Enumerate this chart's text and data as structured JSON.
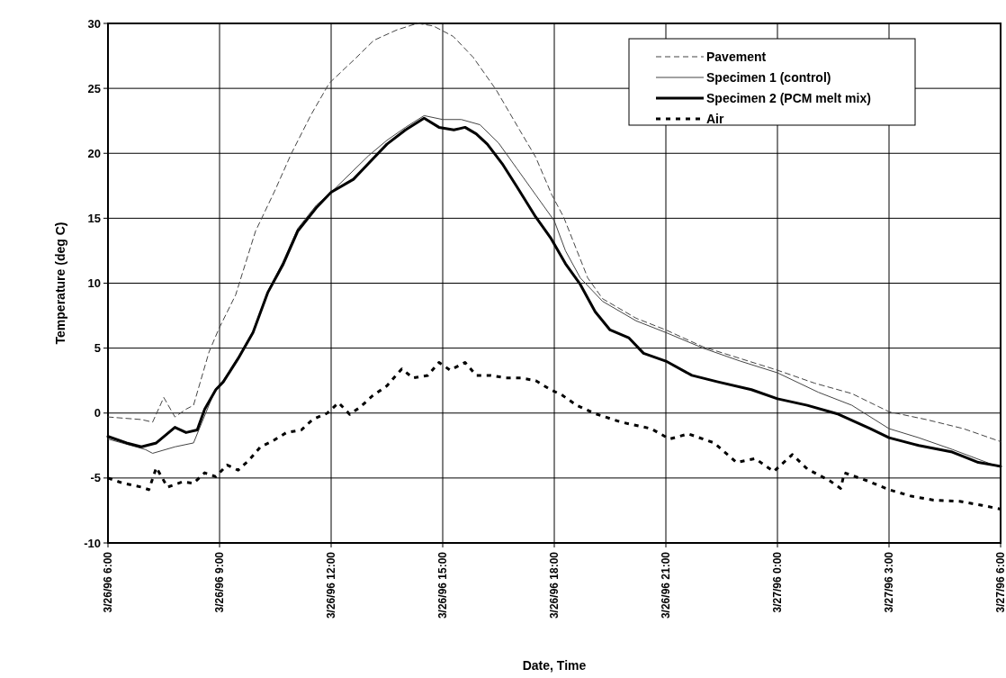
{
  "chart_data": {
    "type": "line",
    "xlabel": "Date, Time",
    "ylabel": "Temperature (deg C)",
    "xlim": [
      "1996-03-26T06:00",
      "1996-03-27T06:00"
    ],
    "xticks": [
      {
        "value": "1996-03-26T06:00",
        "label": "3/26/96 6:00"
      },
      {
        "value": "1996-03-26T09:00",
        "label": "3/26/96 9:00"
      },
      {
        "value": "1996-03-26T12:00",
        "label": "3/26/96 12:00"
      },
      {
        "value": "1996-03-26T15:00",
        "label": "3/26/96 15:00"
      },
      {
        "value": "1996-03-26T18:00",
        "label": "3/26/96 18:00"
      },
      {
        "value": "1996-03-26T21:00",
        "label": "3/26/96 21:00"
      },
      {
        "value": "1996-03-27T00:00",
        "label": "3/27/96 0:00"
      },
      {
        "value": "1996-03-27T03:00",
        "label": "3/27/96 3:00"
      },
      {
        "value": "1996-03-27T06:00",
        "label": "3/27/96 6:00"
      }
    ],
    "ylim": [
      -10,
      30
    ],
    "yticks": [
      -10,
      -5,
      0,
      5,
      10,
      15,
      20,
      25,
      30
    ],
    "grid": true,
    "legend": "top right",
    "marker": "none",
    "series": [
      {
        "name": "Pavement",
        "color": "#444444",
        "line_style": "dashed",
        "x": [
          "1996-03-26T06:00",
          "1996-03-26T06:54",
          "1996-03-26T07:12",
          "1996-03-26T07:30",
          "1996-03-26T07:48",
          "1996-03-26T08:06",
          "1996-03-26T08:18",
          "1996-03-26T08:43",
          "1996-03-26T08:59",
          "1996-03-26T09:26",
          "1996-03-26T09:58",
          "1996-03-26T10:29",
          "1996-03-26T10:56",
          "1996-03-26T11:28",
          "1996-03-26T11:57",
          "1996-03-26T12:37",
          "1996-03-26T13:09",
          "1996-03-26T13:46",
          "1996-03-26T14:19",
          "1996-03-26T14:45",
          "1996-03-26T15:17",
          "1996-03-26T15:49",
          "1996-03-26T16:26",
          "1996-03-26T17:04",
          "1996-03-26T17:30",
          "1996-03-26T17:56",
          "1996-03-26T18:15",
          "1996-03-26T18:54",
          "1996-03-26T19:18",
          "1996-03-26T20:12",
          "1996-03-26T21:00",
          "1996-03-26T22:00",
          "1996-03-26T23:00",
          "1996-03-27T00:00",
          "1996-03-27T01:00",
          "1996-03-27T02:00",
          "1996-03-27T03:00",
          "1996-03-27T04:00",
          "1996-03-27T05:00",
          "1996-03-27T06:00"
        ],
        "values": [
          -0.3,
          -0.5,
          -0.7,
          1.2,
          -0.3,
          0.3,
          0.6,
          4.7,
          6.5,
          9.1,
          14,
          17.1,
          20,
          23,
          25.4,
          27.2,
          28.7,
          29.5,
          30,
          29.8,
          29,
          27.4,
          24.9,
          21.8,
          19.7,
          16.8,
          15.1,
          10.4,
          8.8,
          7.3,
          6.4,
          5.1,
          4.2,
          3.3,
          2.3,
          1.5,
          0.1,
          -0.5,
          -1.2,
          -2.2
        ]
      },
      {
        "name": "Specimen 1 (control)",
        "color": "#444444",
        "line_style": "solid",
        "x": [
          "1996-03-26T06:00",
          "1996-03-26T07:00",
          "1996-03-26T07:12",
          "1996-03-26T07:48",
          "1996-03-26T08:18",
          "1996-03-26T08:54",
          "1996-03-26T09:06",
          "1996-03-26T09:30",
          "1996-03-26T09:54",
          "1996-03-26T10:18",
          "1996-03-26T10:42",
          "1996-03-26T11:06",
          "1996-03-26T11:36",
          "1996-03-26T12:00",
          "1996-03-26T13:00",
          "1996-03-26T13:30",
          "1996-03-26T14:00",
          "1996-03-26T14:30",
          "1996-03-26T15:00",
          "1996-03-26T15:30",
          "1996-03-26T16:00",
          "1996-03-26T16:30",
          "1996-03-26T17:00",
          "1996-03-26T17:30",
          "1996-03-26T18:00",
          "1996-03-26T18:18",
          "1996-03-26T18:42",
          "1996-03-26T19:18",
          "1996-03-26T20:12",
          "1996-03-26T21:00",
          "1996-03-26T22:00",
          "1996-03-26T23:00",
          "1996-03-27T00:00",
          "1996-03-27T01:06",
          "1996-03-27T02:00",
          "1996-03-27T03:00",
          "1996-03-27T03:48",
          "1996-03-27T04:42",
          "1996-03-27T06:00"
        ],
        "values": [
          -2,
          -2.8,
          -3.1,
          -2.6,
          -2.3,
          1.9,
          2.5,
          4.3,
          6.3,
          9.4,
          11.6,
          14.2,
          16,
          17,
          19.8,
          21,
          22,
          22.9,
          22.6,
          22.6,
          22.2,
          20.8,
          18.8,
          16.8,
          14.8,
          12.5,
          10.4,
          8.6,
          7.1,
          6.2,
          5,
          4,
          3.1,
          1.6,
          0.6,
          -1.2,
          -1.9,
          -2.8,
          -4.2
        ]
      },
      {
        "name": "Specimen 2 (PCM melt mix)",
        "color": "#000000",
        "line_style": "solid",
        "x": [
          "1996-03-26T06:00",
          "1996-03-26T06:30",
          "1996-03-26T06:54",
          "1996-03-26T07:18",
          "1996-03-26T07:48",
          "1996-03-26T08:06",
          "1996-03-26T08:24",
          "1996-03-26T08:36",
          "1996-03-26T08:54",
          "1996-03-26T09:06",
          "1996-03-26T09:30",
          "1996-03-26T09:54",
          "1996-03-26T10:18",
          "1996-03-26T10:42",
          "1996-03-26T11:06",
          "1996-03-26T11:36",
          "1996-03-26T12:00",
          "1996-03-26T12:36",
          "1996-03-26T13:00",
          "1996-03-26T13:30",
          "1996-03-26T14:00",
          "1996-03-26T14:30",
          "1996-03-26T14:54",
          "1996-03-26T15:18",
          "1996-03-26T15:36",
          "1996-03-26T15:54",
          "1996-03-26T16:12",
          "1996-03-26T16:36",
          "1996-03-26T17:00",
          "1996-03-26T17:30",
          "1996-03-26T17:54",
          "1996-03-26T18:18",
          "1996-03-26T18:42",
          "1996-03-26T19:06",
          "1996-03-26T19:30",
          "1996-03-26T20:00",
          "1996-03-26T20:24",
          "1996-03-26T21:00",
          "1996-03-26T21:42",
          "1996-03-26T22:24",
          "1996-03-26T23:18",
          "1996-03-27T00:00",
          "1996-03-27T00:48",
          "1996-03-27T01:36",
          "1996-03-27T02:30",
          "1996-03-27T03:00",
          "1996-03-27T03:48",
          "1996-03-27T04:42",
          "1996-03-27T05:24",
          "1996-03-27T06:00"
        ],
        "values": [
          -1.8,
          -2.3,
          -2.6,
          -2.3,
          -1.1,
          -1.5,
          -1.3,
          0.3,
          1.8,
          2.4,
          4.2,
          6.2,
          9.3,
          11.4,
          14,
          15.8,
          17,
          18,
          19.2,
          20.7,
          21.8,
          22.7,
          22,
          21.8,
          22,
          21.5,
          20.7,
          19.2,
          17.4,
          15.1,
          13.5,
          11.5,
          9.9,
          7.8,
          6.4,
          5.8,
          4.6,
          4,
          2.9,
          2.4,
          1.8,
          1.1,
          0.6,
          -0.05,
          -1.2,
          -1.9,
          -2.5,
          -3,
          -3.8,
          -4.1
        ]
      },
      {
        "name": "Air",
        "color": "#000000",
        "line_style": "dotted",
        "x": [
          "1996-03-26T06:00",
          "1996-03-26T06:24",
          "1996-03-26T06:54",
          "1996-03-26T07:06",
          "1996-03-26T07:18",
          "1996-03-26T07:36",
          "1996-03-26T08:00",
          "1996-03-26T08:18",
          "1996-03-26T08:36",
          "1996-03-26T08:54",
          "1996-03-26T09:12",
          "1996-03-26T09:30",
          "1996-03-26T09:48",
          "1996-03-26T10:06",
          "1996-03-26T10:24",
          "1996-03-26T10:48",
          "1996-03-26T11:12",
          "1996-03-26T11:30",
          "1996-03-26T11:54",
          "1996-03-26T12:12",
          "1996-03-26T12:30",
          "1996-03-26T12:48",
          "1996-03-26T13:06",
          "1996-03-26T13:30",
          "1996-03-26T13:54",
          "1996-03-26T14:12",
          "1996-03-26T14:36",
          "1996-03-26T14:54",
          "1996-03-26T15:12",
          "1996-03-26T15:36",
          "1996-03-26T15:54",
          "1996-03-26T16:18",
          "1996-03-26T16:42",
          "1996-03-26T17:06",
          "1996-03-26T17:30",
          "1996-03-26T17:54",
          "1996-03-26T18:12",
          "1996-03-26T18:36",
          "1996-03-26T19:06",
          "1996-03-26T19:48",
          "1996-03-26T20:36",
          "1996-03-26T21:06",
          "1996-03-26T21:36",
          "1996-03-26T22:18",
          "1996-03-26T22:54",
          "1996-03-26T23:24",
          "1996-03-26T23:54",
          "1996-03-27T00:24",
          "1996-03-27T00:48",
          "1996-03-27T01:24",
          "1996-03-27T01:42",
          "1996-03-27T01:48",
          "1996-03-27T02:24",
          "1996-03-27T03:00",
          "1996-03-27T03:36",
          "1996-03-27T04:12",
          "1996-03-27T04:54",
          "1996-03-27T05:30",
          "1996-03-27T06:00"
        ],
        "values": [
          -5,
          -5.4,
          -5.7,
          -5.9,
          -4.2,
          -5.7,
          -5.3,
          -5.4,
          -4.6,
          -4.9,
          -4,
          -4.4,
          -3.6,
          -2.6,
          -2.2,
          -1.5,
          -1.3,
          -0.5,
          0,
          0.8,
          -0.1,
          0.5,
          1.3,
          2.1,
          3.4,
          2.7,
          2.9,
          3.9,
          3.3,
          3.9,
          2.9,
          2.9,
          2.7,
          2.7,
          2.5,
          1.8,
          1.4,
          0.6,
          -0.05,
          -0.7,
          -1.2,
          -2,
          -1.6,
          -2.3,
          -3.8,
          -3.5,
          -4.5,
          -3.2,
          -4.3,
          -5.2,
          -5.8,
          -4.6,
          -5.2,
          -5.9,
          -6.4,
          -6.7,
          -6.8,
          -7.1,
          -7.4
        ]
      }
    ]
  }
}
